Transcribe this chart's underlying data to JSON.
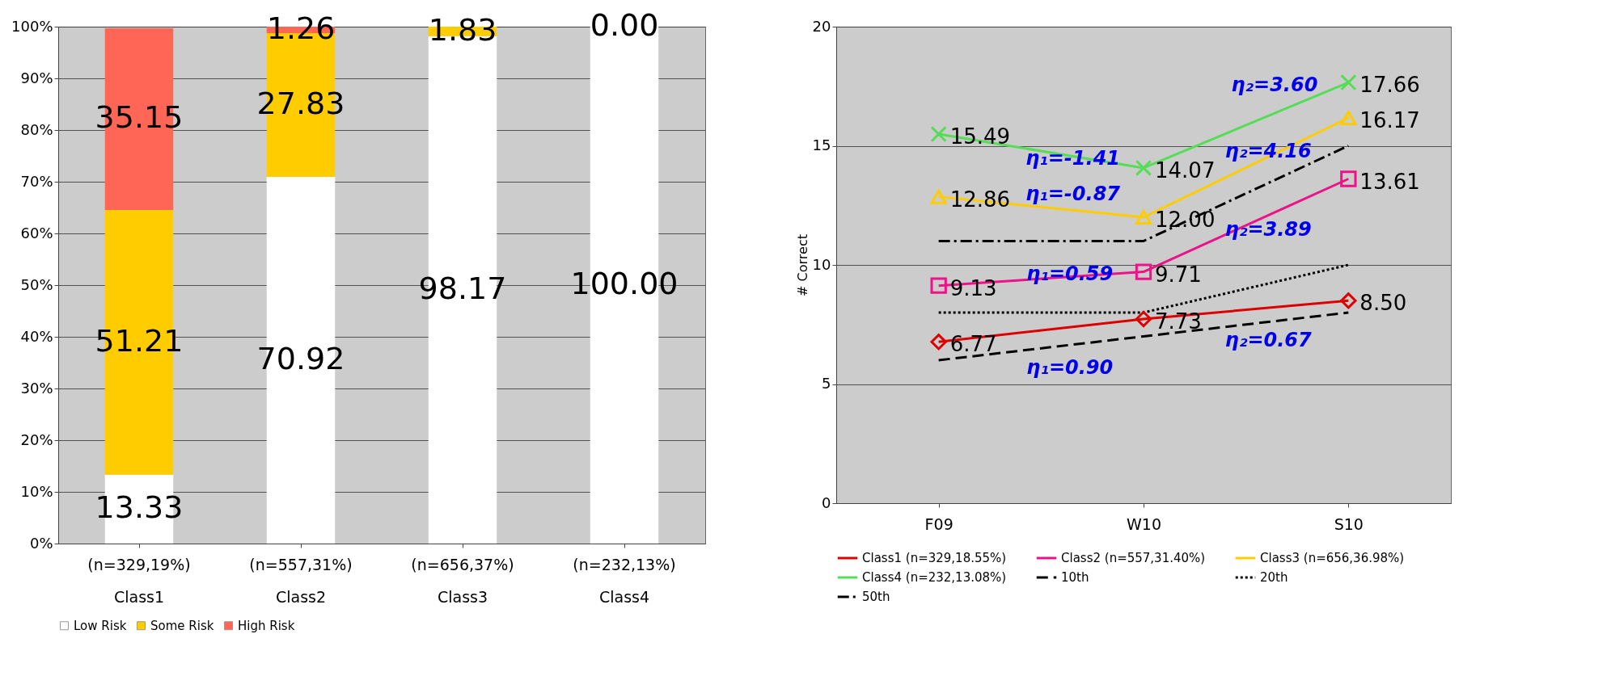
{
  "chart_data": [
    {
      "type": "bar",
      "stacked": true,
      "categories": [
        "(n=329,19%)\nClass1",
        "(n=557,31%)\nClass2",
        "(n=656,37%)\nClass3",
        "(n=232,13%)\nClass4"
      ],
      "series": [
        {
          "name": "Low Risk",
          "color": "#ffffff",
          "values": [
            13.33,
            70.92,
            98.17,
            100.0
          ],
          "value_labels": [
            "13.33",
            "70.92",
            "98.17",
            "100.00"
          ]
        },
        {
          "name": "Some Risk",
          "color": "#ffcc00",
          "values": [
            51.21,
            27.83,
            1.83,
            0
          ],
          "value_labels": [
            "51.21",
            "27.83",
            "1.83",
            null
          ]
        },
        {
          "name": "High Risk",
          "color": "#ff6655",
          "values": [
            35.15,
            1.26,
            0,
            0.0
          ],
          "value_labels": [
            "35.15",
            "1.26",
            null,
            "0.00"
          ]
        }
      ],
      "ylim": [
        0,
        100
      ],
      "yticks": [
        {
          "value": 0,
          "label": "0%"
        },
        {
          "value": 10,
          "label": "10%"
        },
        {
          "value": 20,
          "label": "20%"
        },
        {
          "value": 30,
          "label": "30%"
        },
        {
          "value": 40,
          "label": "40%"
        },
        {
          "value": 50,
          "label": "50%"
        },
        {
          "value": 60,
          "label": "60%"
        },
        {
          "value": 70,
          "label": "70%"
        },
        {
          "value": 80,
          "label": "80%"
        },
        {
          "value": 90,
          "label": "90%"
        },
        {
          "value": 100,
          "label": "100%"
        }
      ],
      "grid": "y",
      "legend": "bottom"
    },
    {
      "type": "line",
      "categories": [
        "F09",
        "W10",
        "S10"
      ],
      "ylabel": "# Correct",
      "series": [
        {
          "name": "Class1 (n=329,18.55%)",
          "color": "#dd0000",
          "values": [
            6.77,
            7.73,
            8.5
          ],
          "value_labels": [
            "6.77",
            "7.73",
            "8.50"
          ],
          "marker": "diamond",
          "line_style": "solid"
        },
        {
          "name": "Class2 (n=557,31.40%)",
          "color": "#ee1188",
          "values": [
            9.13,
            9.71,
            13.61
          ],
          "value_labels": [
            "9.13",
            "9.71",
            "13.61"
          ],
          "marker": "square",
          "line_style": "solid"
        },
        {
          "name": "Class3 (n=656,36.98%)",
          "color": "#ffcc00",
          "values": [
            12.86,
            12.0,
            16.17
          ],
          "value_labels": [
            "12.86",
            "12.00",
            "16.17"
          ],
          "marker": "triangle",
          "line_style": "solid"
        },
        {
          "name": "Class4 (n=232,13.08%)",
          "color": "#55dd55",
          "values": [
            15.49,
            14.07,
            17.66
          ],
          "value_labels": [
            "15.49",
            "14.07",
            "17.66"
          ],
          "marker": "cross",
          "line_style": "solid"
        },
        {
          "name": "10th",
          "color": "#000000",
          "values": [
            6,
            7,
            8
          ],
          "line_style": "dashed"
        },
        {
          "name": "20th",
          "color": "#000000",
          "values": [
            8,
            8,
            10
          ],
          "line_style": "dotted"
        },
        {
          "name": "50th",
          "color": "#000000",
          "values": [
            11,
            11,
            15
          ],
          "line_style": "dashdot"
        }
      ],
      "ylim": [
        0,
        20
      ],
      "yticks": [
        0,
        5,
        10,
        15,
        20
      ],
      "grid": "y",
      "legend": "bottom",
      "annotations": [
        "η₂=3.60",
        "η₁=-1.41",
        "η₂=4.16",
        "η₁=-0.87",
        "η₂=3.89",
        "η₁=0.59",
        "η₂=0.67",
        "η₁=0.90"
      ]
    }
  ]
}
